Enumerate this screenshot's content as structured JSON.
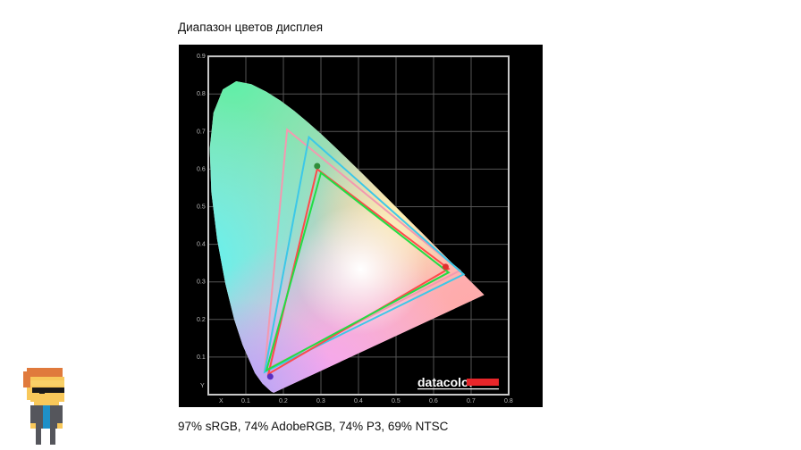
{
  "article": {
    "heading": "Диапазон цветов дисплея",
    "caption": "97% sRGB, 74% AdobeRGB, 74% P3, 69% NTSC"
  },
  "figure": {
    "logo_text": "datacolor",
    "x_axis_label": "X",
    "y_axis_label": "Y",
    "x_ticks": [
      "0.1",
      "0.2",
      "0.3",
      "0.4",
      "0.5",
      "0.6",
      "0.7",
      "0.8"
    ],
    "y_ticks": [
      "0.1",
      "0.2",
      "0.3",
      "0.4",
      "0.5",
      "0.6",
      "0.7",
      "0.8",
      "0.9"
    ],
    "gamuts": [
      {
        "color": "#f29ab0",
        "points": [
          [
            0.21,
            0.705
          ],
          [
            0.67,
            0.33
          ],
          [
            0.15,
            0.065
          ]
        ]
      },
      {
        "color": "#3cc8e8",
        "points": [
          [
            0.268,
            0.685
          ],
          [
            0.68,
            0.32
          ],
          [
            0.15,
            0.06
          ]
        ]
      },
      {
        "color": "#ff4a4a",
        "points": [
          [
            0.29,
            0.6
          ],
          [
            0.64,
            0.335
          ],
          [
            0.16,
            0.055
          ]
        ]
      },
      {
        "color": "#22dd44",
        "points": [
          [
            0.3,
            0.59
          ],
          [
            0.64,
            0.325
          ],
          [
            0.155,
            0.065
          ]
        ]
      }
    ],
    "primary_markers": [
      {
        "color": "#2f8f3a",
        "point": [
          0.29,
          0.608
        ]
      },
      {
        "color": "#e03030",
        "point": [
          0.632,
          0.34
        ]
      },
      {
        "color": "#5a2fc0",
        "point": [
          0.165,
          0.048
        ]
      }
    ],
    "colors": {
      "logo_bar": "#e8262a",
      "frame": "#c8c8c8"
    }
  },
  "mascot": {
    "icon": "pixel-art-avatar-icon"
  }
}
